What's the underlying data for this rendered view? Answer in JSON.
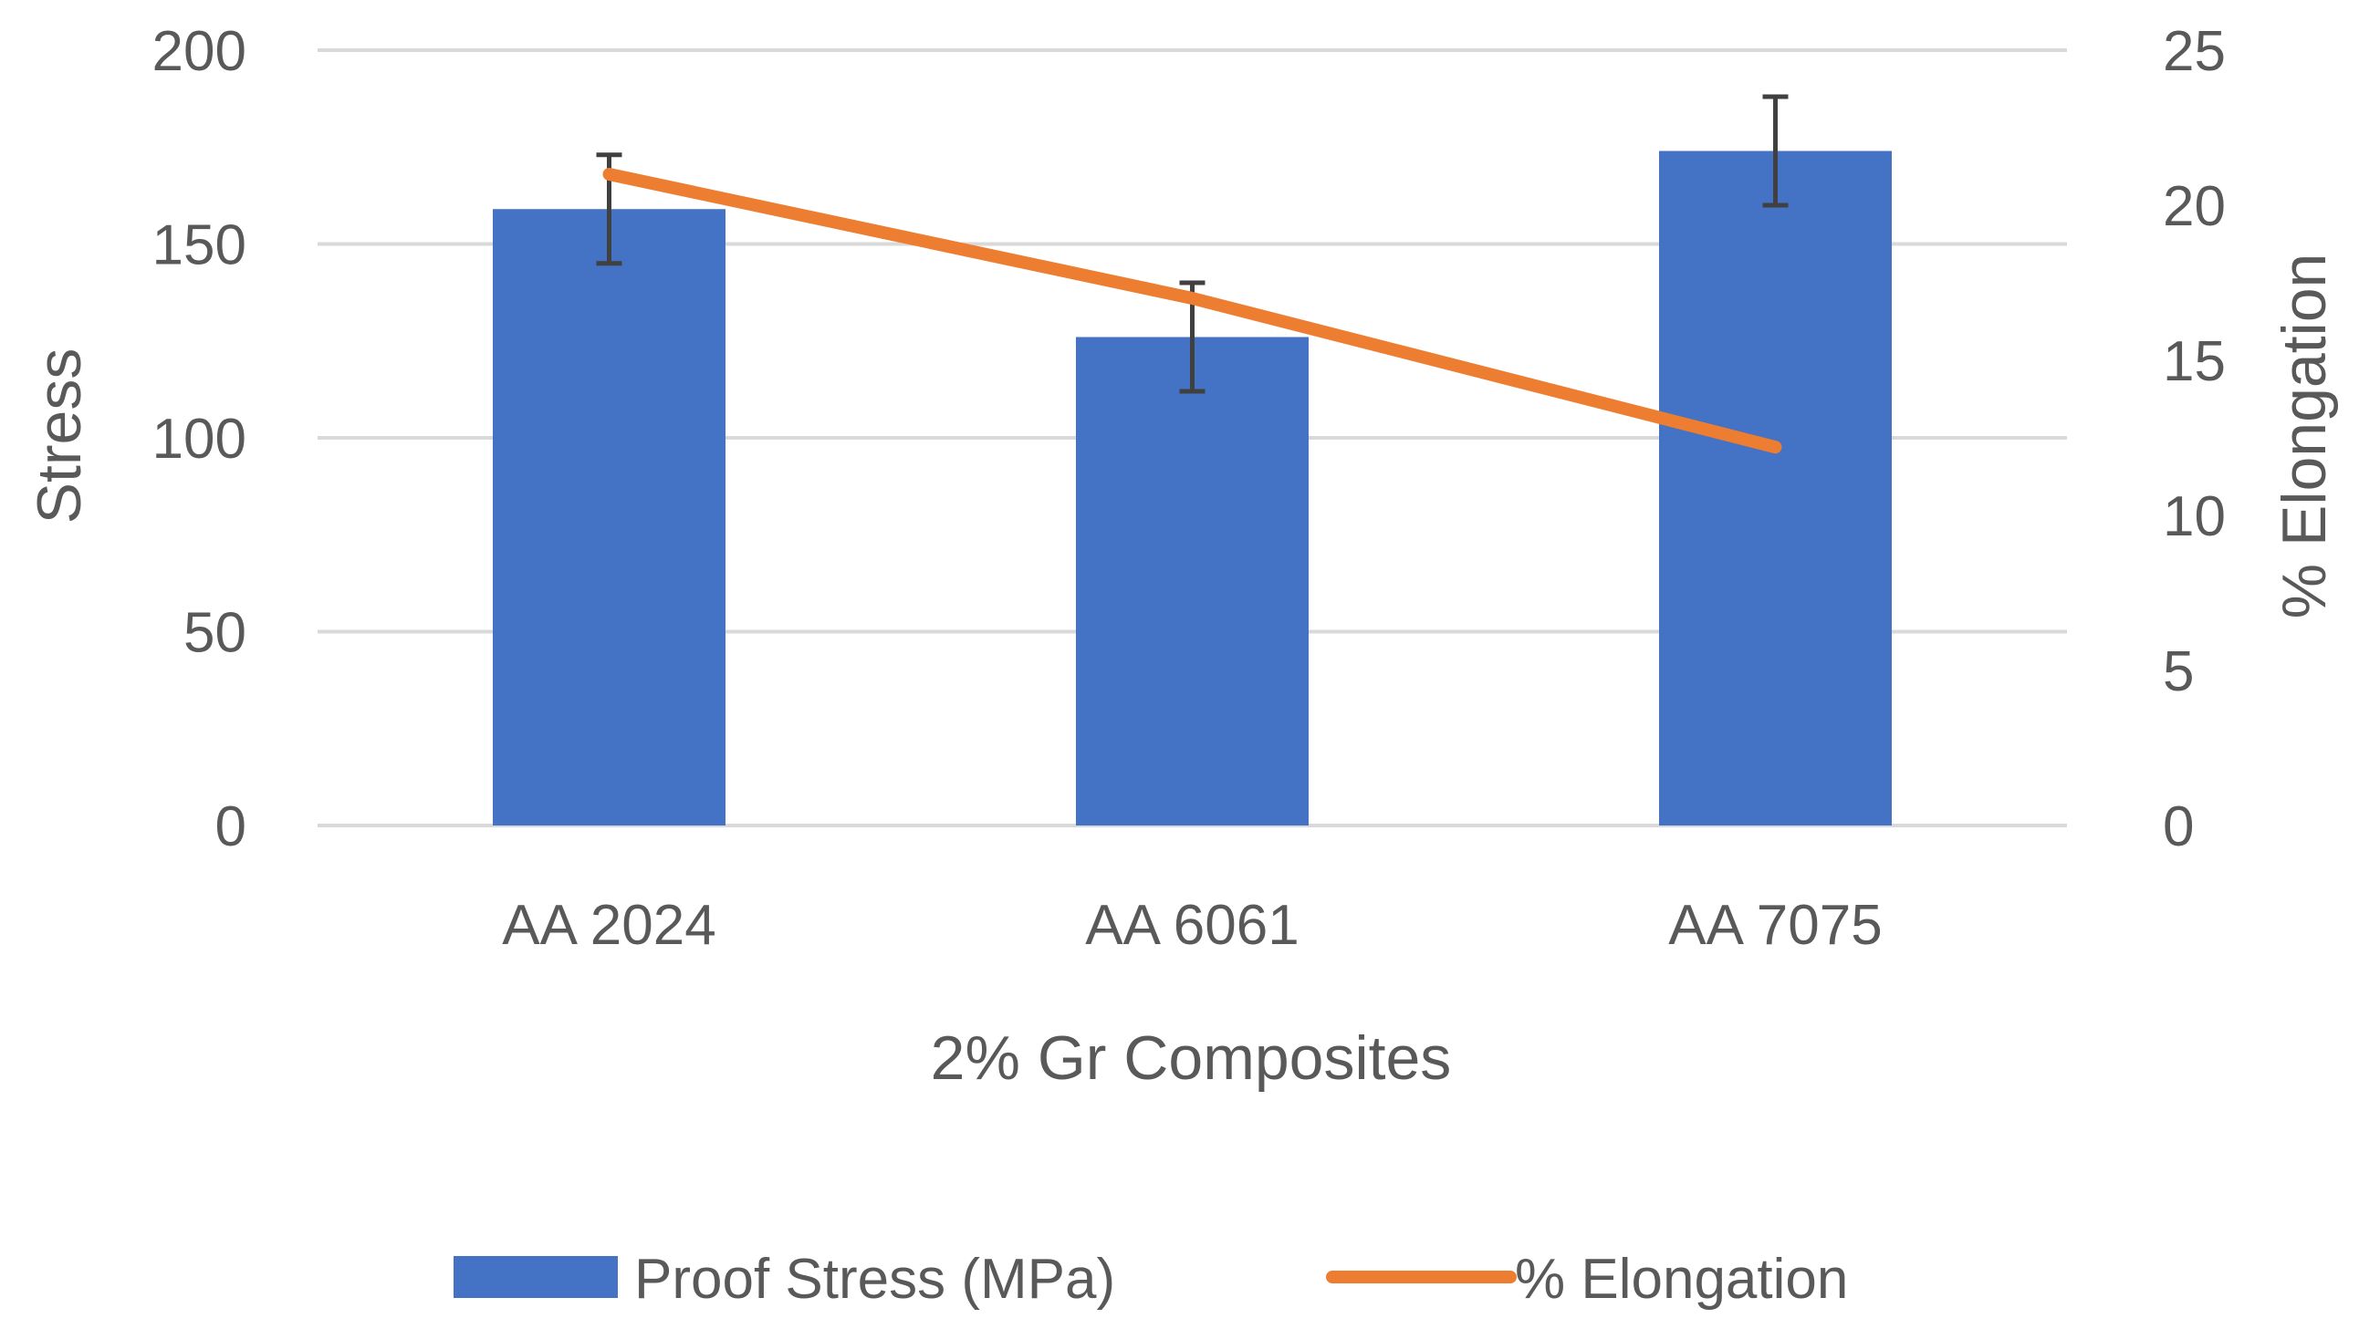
{
  "chart_data": {
    "type": "bar+line",
    "categories": [
      "AA 2024",
      "AA 6061",
      "AA 7075"
    ],
    "series": [
      {
        "name": "Proof Stress (MPa)",
        "type": "bar",
        "axis": "left",
        "values": [
          159,
          126,
          174
        ],
        "error": [
          14,
          14,
          14
        ],
        "color": "#4472C4"
      },
      {
        "name": "% Elongation",
        "type": "line",
        "axis": "right",
        "values": [
          21,
          17,
          12.2
        ],
        "color": "#ED7D31"
      }
    ],
    "xlabel": "2% Gr Composites",
    "ylabel": "Stress",
    "y2label": "% Elongation",
    "ylim": [
      0,
      200
    ],
    "y_ticks": [
      0,
      50,
      100,
      150,
      200
    ],
    "y2lim": [
      0,
      25
    ],
    "y2_ticks": [
      0,
      5,
      10,
      15,
      20,
      25
    ],
    "grid": true,
    "legend": "bottom",
    "error_bar_color": "#404040",
    "gridline_color": "#D9D9D9"
  }
}
